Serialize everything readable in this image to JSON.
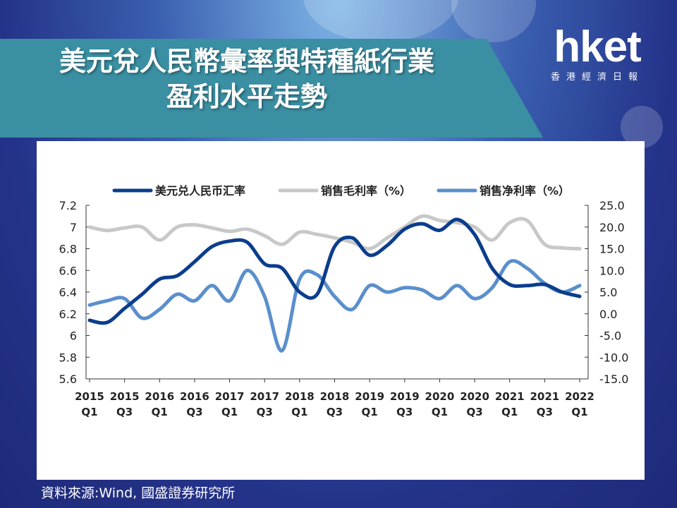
{
  "header": {
    "title_line1": "美元兌人民幣彙率與特種紙行業",
    "title_line2": "盈利水平走勢"
  },
  "logo": {
    "main": "hket",
    "sub": "香港經濟日報"
  },
  "source": "資料來源:Wind, 國盛證券研究所",
  "colors": {
    "fx": "#0b3d8c",
    "gross": "#c8c8c8",
    "net": "#5a8fcc",
    "banner": "#3a8fa3"
  },
  "chart_data": {
    "type": "line",
    "legend_position": "top",
    "x_tick_labels": [
      [
        "2015",
        "Q1"
      ],
      [
        "2015",
        "Q3"
      ],
      [
        "2016",
        "Q1"
      ],
      [
        "2016",
        "Q3"
      ],
      [
        "2017",
        "Q1"
      ],
      [
        "2017",
        "Q3"
      ],
      [
        "2018",
        "Q1"
      ],
      [
        "2018",
        "Q3"
      ],
      [
        "2019",
        "Q1"
      ],
      [
        "2019",
        "Q3"
      ],
      [
        "2020",
        "Q1"
      ],
      [
        "2020",
        "Q3"
      ],
      [
        "2021",
        "Q1"
      ],
      [
        "2021",
        "Q3"
      ],
      [
        "2022",
        "Q1"
      ]
    ],
    "x": [
      "2015Q1",
      "2015Q2",
      "2015Q3",
      "2015Q4",
      "2016Q1",
      "2016Q2",
      "2016Q3",
      "2016Q4",
      "2017Q1",
      "2017Q2",
      "2017Q3",
      "2017Q4",
      "2018Q1",
      "2018Q2",
      "2018Q3",
      "2018Q4",
      "2019Q1",
      "2019Q2",
      "2019Q3",
      "2019Q4",
      "2020Q1",
      "2020Q2",
      "2020Q3",
      "2020Q4",
      "2021Q1",
      "2021Q2",
      "2021Q3",
      "2021Q4",
      "2022Q1"
    ],
    "left_axis": {
      "ticks": [
        "7.2",
        "7",
        "6.8",
        "6.6",
        "6.4",
        "6.2",
        "6",
        "5.8",
        "5.6"
      ],
      "ylim": [
        5.6,
        7.2
      ]
    },
    "right_axis": {
      "ticks": [
        "25.0",
        "20.0",
        "15.0",
        "10.0",
        "5.0",
        "0.0",
        "-5.0",
        "-10.0",
        "-15.0"
      ],
      "ylim": [
        -15,
        25
      ]
    },
    "series": [
      {
        "name": "美元兑人民币汇率",
        "axis": "left",
        "color_key": "fx",
        "values": [
          6.14,
          6.12,
          6.25,
          6.38,
          6.52,
          6.55,
          6.68,
          6.82,
          6.87,
          6.86,
          6.66,
          6.62,
          6.4,
          6.38,
          6.82,
          6.9,
          6.74,
          6.83,
          6.98,
          7.03,
          6.97,
          7.07,
          6.93,
          6.62,
          6.47,
          6.46,
          6.47,
          6.4,
          6.36
        ]
      },
      {
        "name": "销售毛利率（%）",
        "axis": "right",
        "color_key": "gross",
        "values": [
          20.0,
          19.2,
          19.8,
          20.0,
          17.0,
          20.0,
          20.5,
          19.8,
          19.0,
          19.5,
          18.0,
          16.0,
          18.8,
          18.3,
          17.5,
          16.5,
          15.0,
          17.5,
          20.0,
          22.5,
          21.5,
          21.0,
          20.0,
          17.0,
          21.0,
          21.5,
          16.0,
          15.2,
          15.0
        ]
      },
      {
        "name": "销售净利率（%）",
        "axis": "right",
        "color_key": "net",
        "values": [
          2.0,
          3.0,
          3.5,
          -1.0,
          1.0,
          4.5,
          3.0,
          6.5,
          3.0,
          10.0,
          4.0,
          -8.5,
          8.0,
          9.0,
          4.0,
          1.0,
          6.5,
          5.0,
          6.0,
          5.5,
          3.5,
          6.5,
          3.5,
          6.0,
          12.0,
          10.5,
          7.0,
          5.0,
          6.5
        ]
      }
    ]
  }
}
